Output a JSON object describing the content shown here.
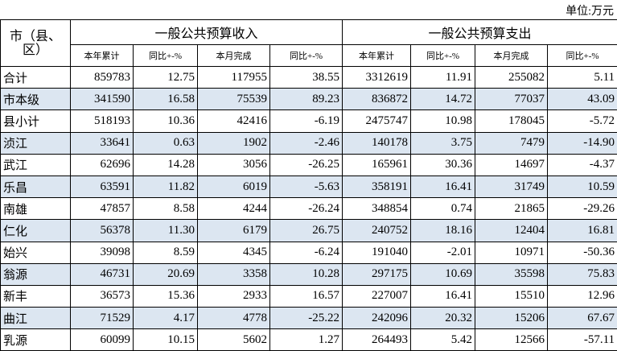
{
  "header": {
    "unit": "单位:万元",
    "region": "市（县、区）",
    "groups": [
      "一般公共预算收入",
      "一般公共预算支出"
    ],
    "subcolumns": [
      "本年累计",
      "同比+-%",
      "本月完成",
      "同比+-%",
      "本年累计",
      "同比+-%",
      "本月完成",
      "同比+-%"
    ]
  },
  "table": {
    "rows": [
      [
        "合计",
        "859783",
        "12.75",
        "117955",
        "38.55",
        "3312619",
        "11.91",
        "255082",
        "5.11"
      ],
      [
        "市本级",
        "341590",
        "16.58",
        "75539",
        "89.23",
        "836872",
        "14.72",
        "77037",
        "43.09"
      ],
      [
        "县小计",
        "518193",
        "10.36",
        "42416",
        "-6.19",
        "2475747",
        "10.98",
        "178045",
        "-5.72"
      ],
      [
        "浈江",
        "33641",
        "0.63",
        "1902",
        "-2.46",
        "140178",
        "3.75",
        "7479",
        "-14.90"
      ],
      [
        "武江",
        "62696",
        "14.28",
        "3056",
        "-26.25",
        "165961",
        "30.36",
        "14697",
        "-4.37"
      ],
      [
        "乐昌",
        "63591",
        "11.82",
        "6019",
        "-5.63",
        "358191",
        "16.41",
        "31749",
        "10.59"
      ],
      [
        "南雄",
        "47857",
        "8.58",
        "4244",
        "-26.24",
        "348854",
        "0.74",
        "21865",
        "-29.26"
      ],
      [
        "仁化",
        "56378",
        "11.30",
        "6179",
        "26.75",
        "240752",
        "18.16",
        "12404",
        "16.81"
      ],
      [
        "始兴",
        "39098",
        "8.59",
        "4345",
        "-6.24",
        "191040",
        "-2.01",
        "10971",
        "-50.36"
      ],
      [
        "翁源",
        "46731",
        "20.69",
        "3358",
        "10.28",
        "297175",
        "10.69",
        "35598",
        "75.83"
      ],
      [
        "新丰",
        "36573",
        "15.36",
        "2933",
        "16.57",
        "227007",
        "16.41",
        "15510",
        "12.96"
      ],
      [
        "曲江",
        "71529",
        "4.17",
        "4778",
        "-25.22",
        "242096",
        "20.32",
        "15206",
        "67.67"
      ],
      [
        "乳源",
        "60099",
        "10.15",
        "5602",
        "1.27",
        "264493",
        "5.42",
        "12566",
        "-57.11"
      ]
    ]
  }
}
